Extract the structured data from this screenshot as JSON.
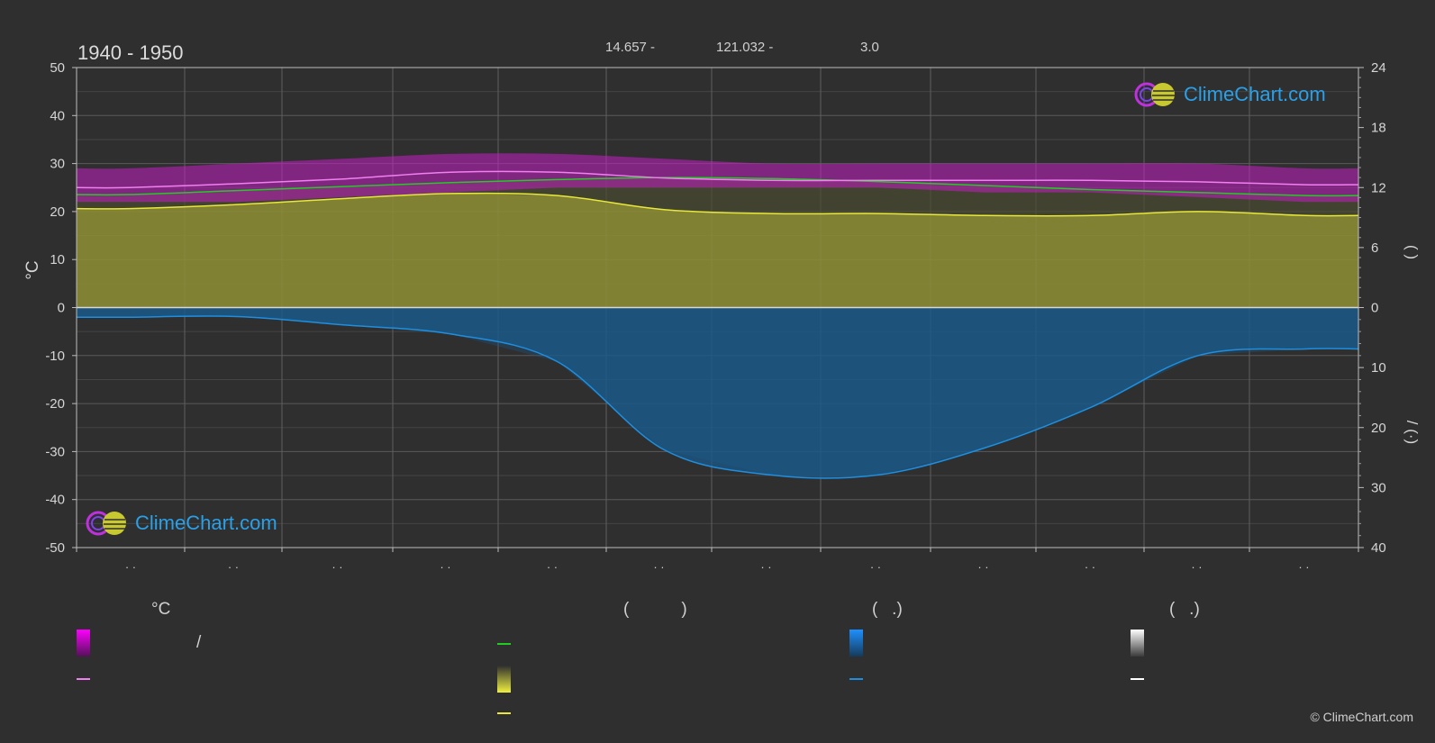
{
  "header": {
    "period": "1940 - 1950",
    "coord_lat": "14.657 -",
    "coord_lon": "121.032 -",
    "coord_elev": "3.0"
  },
  "logo_text": "ClimeChart.com",
  "copyright": "© ClimeChart.com",
  "axes": {
    "left_unit": "°C",
    "left_ticks": [
      "50",
      "40",
      "30",
      "20",
      "10",
      "0",
      "-10",
      "-20",
      "-30",
      "-40",
      "-50"
    ],
    "right_top_ticks": [
      "24",
      "18",
      "12",
      "6",
      "0"
    ],
    "right_bottom_ticks": [
      "0",
      "10",
      "20",
      "30",
      "40"
    ],
    "right_top_label": "(    )",
    "right_bottom_label": "/    (·)",
    "month_tick_marks": [
      "· ·",
      "· ·",
      "· ·",
      "· ·",
      "· ·",
      "· ·",
      "· ·",
      "· ·",
      "· ·",
      "· ·",
      "· ·",
      "· ·"
    ]
  },
  "legend": {
    "temp_header": "°C",
    "daylight_header": "(           )",
    "precip_header": "(   .)",
    "snow_header": "(   .)",
    "minmax_slash": "/"
  },
  "colors": {
    "background": "#2f2f2f",
    "temp_band": "#c21ec2",
    "mean_temp": "#f080f0",
    "daylight": "#22cc22",
    "sunshine_fill": "#8f8f35",
    "sunshine_line": "#e8e83a",
    "rain_fill": "#1b5a8a",
    "rain_line": "#1e8fe0",
    "snow": "#ffffff"
  },
  "chart_data": {
    "type": "area",
    "x": [
      0.0,
      0.5,
      1.5,
      2.5,
      3.5,
      4.5,
      5.5,
      6.5,
      7.5,
      8.5,
      9.5,
      10.5,
      11.5,
      12.0
    ],
    "xlim": [
      0,
      12
    ],
    "left_ylim": [
      -50,
      50
    ],
    "right_top_ylim": [
      0,
      24
    ],
    "right_bottom_ylim": [
      0,
      40
    ],
    "grid": true,
    "series": [
      {
        "role": "temp_max_band",
        "axis": "left",
        "values": [
          29,
          29,
          30,
          31,
          32,
          32,
          31,
          30,
          30,
          30,
          30,
          30,
          29,
          29
        ]
      },
      {
        "role": "temp_min_band",
        "axis": "left",
        "values": [
          22,
          22,
          22,
          23,
          24,
          25,
          25,
          25,
          25,
          24,
          24,
          23,
          22,
          22
        ]
      },
      {
        "role": "mean_temp",
        "axis": "left",
        "values": [
          25.0,
          25.0,
          25.8,
          26.8,
          28.2,
          28.2,
          27.0,
          26.5,
          26.5,
          26.5,
          26.5,
          26.2,
          25.6,
          25.6
        ]
      },
      {
        "role": "daylight_hours",
        "axis": "right_top",
        "values": [
          11.3,
          11.3,
          11.7,
          12.1,
          12.5,
          12.8,
          13.0,
          12.9,
          12.6,
          12.2,
          11.8,
          11.5,
          11.2,
          11.2
        ]
      },
      {
        "role": "sunshine_hours",
        "axis": "right_top",
        "values": [
          9.9,
          9.9,
          10.3,
          10.9,
          11.4,
          11.2,
          9.8,
          9.4,
          9.4,
          9.2,
          9.2,
          9.6,
          9.2,
          9.2
        ]
      },
      {
        "role": "rain_mm_per_day",
        "axis": "right_bottom",
        "values": [
          1.6,
          1.6,
          1.5,
          2.9,
          4.4,
          9.0,
          23.7,
          27.9,
          27.9,
          23.4,
          16.6,
          8.0,
          6.9,
          6.9
        ]
      }
    ]
  }
}
